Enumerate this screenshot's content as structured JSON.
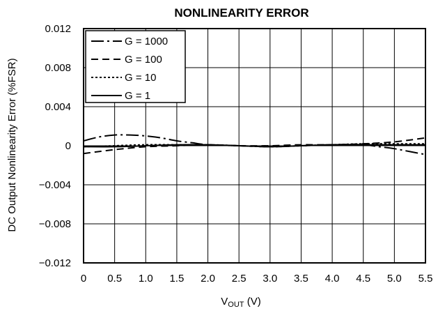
{
  "chart_data": {
    "type": "line",
    "title": "NONLINEARITY ERROR",
    "xlabel_main": "V",
    "xlabel_sub": "OUT",
    "xlabel_unit": " (V)",
    "ylabel": "DC Output Nonlinearity Error (%FSR)",
    "xlim": [
      0,
      5.5
    ],
    "ylim": [
      -0.012,
      0.012
    ],
    "x_ticks": [
      0,
      0.5,
      1.0,
      1.5,
      2.0,
      2.5,
      3.0,
      3.5,
      4.0,
      4.5,
      5.0,
      5.5
    ],
    "x_tick_labels": [
      "0",
      "0.5",
      "1.0",
      "1.5",
      "2.0",
      "2.5",
      "3.0",
      "3.5",
      "4.0",
      "4.5",
      "5.0",
      "5.5"
    ],
    "y_ticks": [
      -0.012,
      -0.008,
      -0.004,
      0,
      0.004,
      0.008,
      0.012
    ],
    "y_tick_labels": [
      "−0.012",
      "−0.008",
      "−0.004",
      "0",
      "0.004",
      "0.008",
      "0.012"
    ],
    "grid": true,
    "legend_position": "top-left",
    "series": [
      {
        "name": "G = 1000",
        "style": "long-dash-dot",
        "x": [
          0,
          0.25,
          0.5,
          0.75,
          1.0,
          1.25,
          1.5,
          1.75,
          2.0,
          2.5,
          3.0,
          3.5,
          4.0,
          4.5,
          4.75,
          5.0,
          5.25,
          5.5
        ],
        "y": [
          0.0005,
          0.0009,
          0.0011,
          0.0011,
          0.001,
          0.0008,
          0.0005,
          0.0003,
          0.0001,
          0.0,
          -0.0001,
          0.0,
          0.0001,
          0.0001,
          -0.0001,
          -0.0003,
          -0.0006,
          -0.0009
        ]
      },
      {
        "name": "G = 100",
        "style": "dash",
        "x": [
          0,
          0.5,
          1.0,
          1.5,
          2.0,
          2.5,
          3.0,
          3.5,
          4.0,
          4.5,
          5.0,
          5.5
        ],
        "y": [
          -0.0008,
          -0.0004,
          -0.0001,
          0.0,
          0.0001,
          0.0,
          0.0,
          0.0001,
          0.0001,
          0.0002,
          0.0004,
          0.0008
        ]
      },
      {
        "name": "G = 10",
        "style": "dot",
        "x": [
          0,
          0.5,
          1.0,
          1.5,
          2.0,
          2.5,
          3.0,
          3.5,
          4.0,
          4.5,
          5.0,
          5.5
        ],
        "y": [
          -0.0001,
          0.0,
          0.0001,
          0.0001,
          0.0001,
          0.0,
          -0.0001,
          0.0,
          0.0001,
          0.0002,
          0.0002,
          0.0002
        ]
      },
      {
        "name": "G = 1",
        "style": "solid",
        "x": [
          0,
          0.5,
          1.0,
          1.5,
          2.0,
          2.5,
          3.0,
          3.5,
          4.0,
          4.5,
          5.0,
          5.5
        ],
        "y": [
          -0.0001,
          -0.0001,
          0.0,
          0.0001,
          0.0001,
          0.0,
          -0.0001,
          0.0,
          0.0001,
          0.0001,
          0.0001,
          0.0001
        ]
      }
    ]
  }
}
